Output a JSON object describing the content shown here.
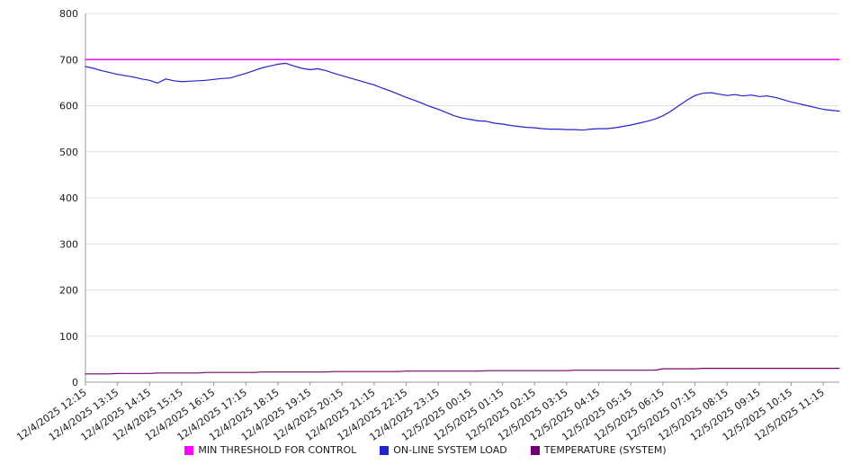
{
  "chart_data": {
    "type": "line",
    "title": "",
    "ylim": [
      0,
      800
    ],
    "ytick_step": 100,
    "grid": "horizontal",
    "legend_position": "bottom",
    "points_per_label": 4,
    "x_labels": [
      "12/4/2025 12:15",
      "12/4/2025 13:15",
      "12/4/2025 14:15",
      "12/4/2025 15:15",
      "12/4/2025 16:15",
      "12/4/2025 17:15",
      "12/4/2025 18:15",
      "12/4/2025 19:15",
      "12/4/2025 20:15",
      "12/4/2025 21:15",
      "12/4/2025 22:15",
      "12/4/2025 23:15",
      "12/5/2025 00:15",
      "12/5/2025 01:15",
      "12/5/2025 02:15",
      "12/5/2025 03:15",
      "12/5/2025 04:15",
      "12/5/2025 05:15",
      "12/5/2025 06:15",
      "12/5/2025 07:15",
      "12/5/2025 08:15",
      "12/5/2025 09:15",
      "12/5/2025 10:15",
      "12/5/2025 11:15"
    ],
    "series": [
      {
        "id": "threshold",
        "name": "MIN THRESHOLD FOR CONTROL",
        "color": "#ff00ff",
        "width": 1.5,
        "constant": 700
      },
      {
        "id": "load",
        "name": "ON-LINE SYSTEM LOAD",
        "color": "#2222cc",
        "width": 1.2,
        "values": [
          685,
          681,
          676,
          672,
          668,
          665,
          662,
          658,
          655,
          649,
          658,
          654,
          652,
          653,
          654,
          655,
          657,
          659,
          660,
          665,
          670,
          676,
          682,
          686,
          690,
          692,
          686,
          681,
          678,
          680,
          676,
          670,
          665,
          660,
          655,
          650,
          645,
          638,
          632,
          625,
          618,
          612,
          605,
          598,
          592,
          585,
          578,
          573,
          570,
          567,
          566,
          562,
          560,
          557,
          555,
          553,
          552,
          550,
          549,
          549,
          548,
          548,
          547,
          549,
          550,
          550,
          552,
          555,
          558,
          562,
          566,
          571,
          578,
          588,
          600,
          612,
          622,
          627,
          628,
          625,
          622,
          624,
          621,
          623,
          620,
          621,
          618,
          613,
          608,
          604,
          600,
          596,
          592,
          590,
          588
        ]
      },
      {
        "id": "temperature",
        "name": "TEMPERATURE (SYSTEM)",
        "color": "#730073",
        "width": 1.2,
        "values": [
          18,
          18,
          18,
          18,
          19,
          19,
          19,
          19,
          19,
          20,
          20,
          20,
          20,
          20,
          20,
          21,
          21,
          21,
          21,
          21,
          21,
          21,
          22,
          22,
          22,
          22,
          22,
          22,
          22,
          22,
          22,
          23,
          23,
          23,
          23,
          23,
          23,
          23,
          23,
          23,
          24,
          24,
          24,
          24,
          24,
          24,
          24,
          24,
          24,
          24,
          25,
          25,
          25,
          25,
          25,
          25,
          25,
          25,
          25,
          25,
          25,
          26,
          26,
          26,
          26,
          26,
          26,
          26,
          26,
          26,
          26,
          26,
          29,
          29,
          29,
          29,
          29,
          30,
          30,
          30,
          30,
          30,
          30,
          30,
          30,
          30,
          30,
          30,
          30,
          30,
          30,
          30,
          30,
          30,
          30
        ]
      }
    ]
  }
}
